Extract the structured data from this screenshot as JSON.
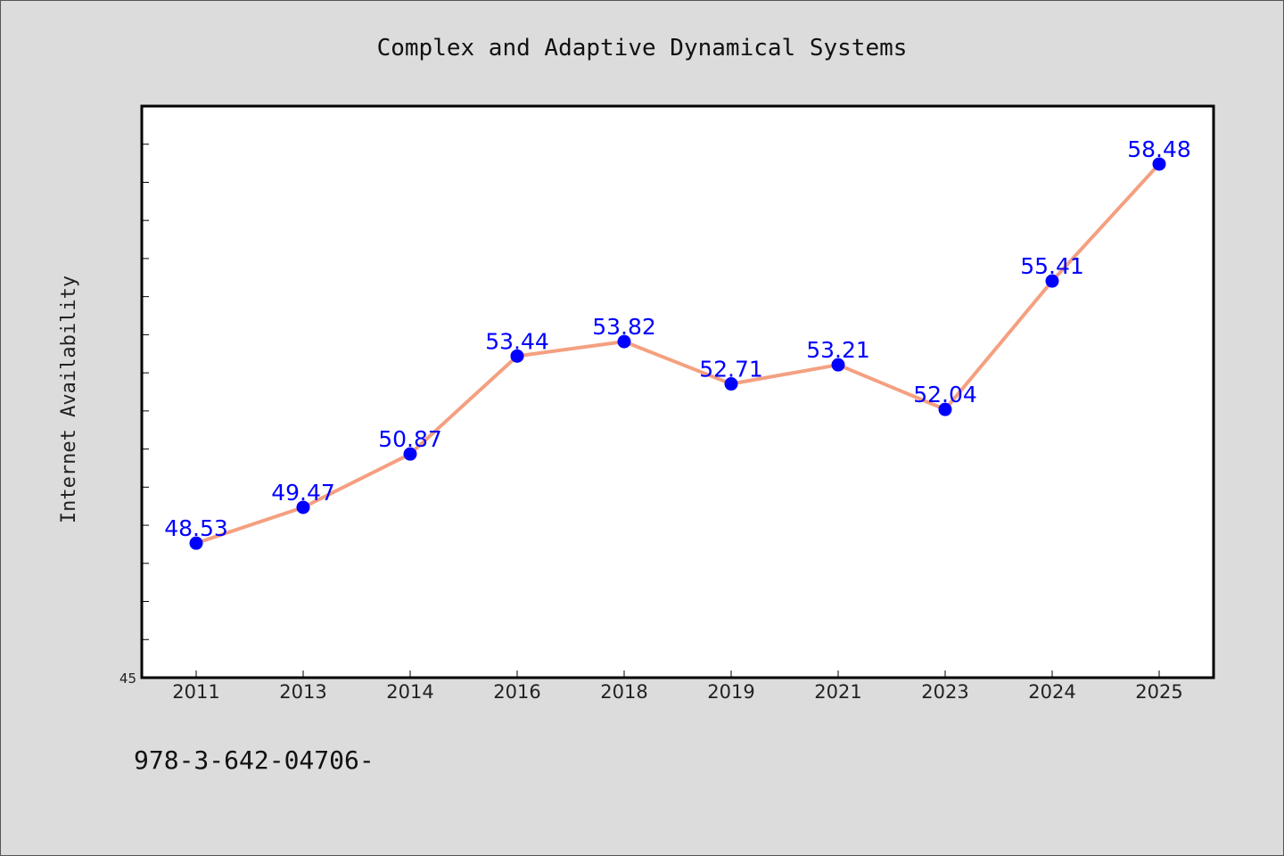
{
  "chart_data": {
    "type": "line",
    "title": "Complex and Adaptive Dynamical Systems",
    "xlabel": "",
    "ylabel": "Internet Availability",
    "categories": [
      "2011",
      "2013",
      "2014",
      "2016",
      "2018",
      "2019",
      "2021",
      "2023",
      "2024",
      "2025"
    ],
    "series": [
      {
        "values": [
          48.53,
          49.47,
          50.87,
          53.44,
          53.82,
          52.71,
          53.21,
          52.04,
          55.41,
          58.48
        ]
      }
    ],
    "ylim": [
      45,
      60
    ],
    "y_tick_labels": [
      "45"
    ],
    "grid": false,
    "line_color": "#f4a080",
    "marker_color": "#0000ff",
    "label_color": "#0000ff"
  },
  "footer": {
    "text": "978-3-642-04706-"
  }
}
